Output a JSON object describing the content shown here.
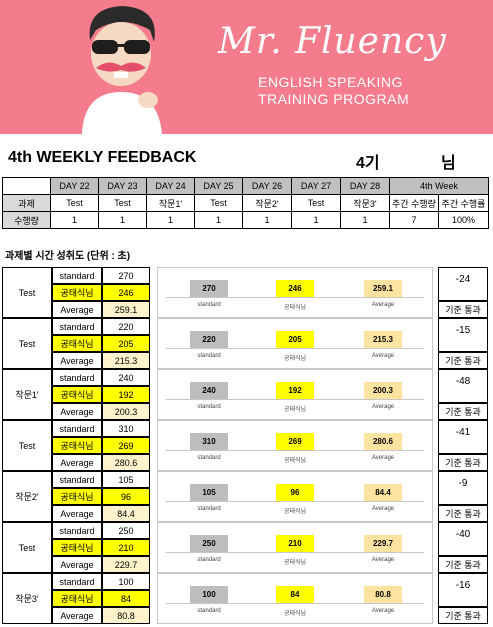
{
  "banner": {
    "brand_title": "Mr. Fluency",
    "brand_sub_line1": "ENGLISH SPEAKING",
    "brand_sub_line2": "TRAINING PROGRAM",
    "bg_color": "#f47c8c"
  },
  "heading": {
    "title": "4th WEEKLY FEEDBACK",
    "round": "4기",
    "honorific": "님"
  },
  "weekly_table": {
    "headers": [
      "DAY 22",
      "DAY 23",
      "DAY 24",
      "DAY 25",
      "DAY 26",
      "DAY 27",
      "DAY 28",
      "4th Week"
    ],
    "row1_label": "과제",
    "row1": [
      "Test",
      "Test",
      "작문1'",
      "Test",
      "작문2'",
      "Test",
      "작문3'",
      "주간 수행량",
      "주간 수행률"
    ],
    "row2_label": "수행량",
    "row2": [
      "1",
      "1",
      "1",
      "1",
      "1",
      "1",
      "1",
      "7",
      "100%"
    ]
  },
  "section_label": "과제별 시간 성취도 (단위 : 초)",
  "row_labels": {
    "standard": "standard",
    "user": "공태식님",
    "average": "Average"
  },
  "chart_labels": {
    "standard": "standard",
    "user": "공태식님",
    "average": "Average"
  },
  "pass_label": "기준 통과",
  "tasks": [
    {
      "task": "Test",
      "standard": "270",
      "user": "246",
      "average": "259.1",
      "diff": "-24"
    },
    {
      "task": "Test",
      "standard": "220",
      "user": "205",
      "average": "215.3",
      "diff": "-15"
    },
    {
      "task": "작문1'",
      "standard": "240",
      "user": "192",
      "average": "200.3",
      "diff": "-48"
    },
    {
      "task": "Test",
      "standard": "310",
      "user": "269",
      "average": "280.6",
      "diff": "-41"
    },
    {
      "task": "작문2'",
      "standard": "105",
      "user": "96",
      "average": "84.4",
      "diff": "-9"
    },
    {
      "task": "Test",
      "standard": "250",
      "user": "210",
      "average": "229.7",
      "diff": "-40"
    },
    {
      "task": "작문3'",
      "standard": "100",
      "user": "84",
      "average": "80.8",
      "diff": "-16"
    }
  ],
  "colors": {
    "standard": "#bdbdbd",
    "user": "#ffff00",
    "average": "#fde3a0"
  }
}
